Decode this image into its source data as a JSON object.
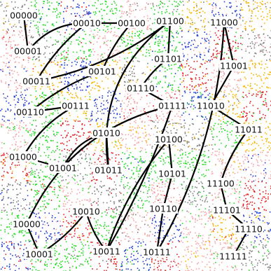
{
  "figure": {
    "background_point_colors": [
      "#e41a1c",
      "#1f3bd6",
      "#22dd22",
      "#f7b500",
      "#f4a6a6",
      "#808080"
    ]
  },
  "nodes": [
    {
      "id": "n00000",
      "label": "00000"
    },
    {
      "id": "n00001",
      "label": "00001"
    },
    {
      "id": "n00010",
      "label": "00010"
    },
    {
      "id": "n00011",
      "label": "00011"
    },
    {
      "id": "n00100",
      "label": "00100"
    },
    {
      "id": "n00101",
      "label": "00101"
    },
    {
      "id": "n00110",
      "label": "00110"
    },
    {
      "id": "n00111",
      "label": "00111"
    },
    {
      "id": "n01000",
      "label": "01000"
    },
    {
      "id": "n01001",
      "label": "01001"
    },
    {
      "id": "n01010",
      "label": "01010"
    },
    {
      "id": "n01011",
      "label": "01011"
    },
    {
      "id": "n01100",
      "label": "01100"
    },
    {
      "id": "n01101",
      "label": "01101"
    },
    {
      "id": "n01110",
      "label": "01110"
    },
    {
      "id": "n01111",
      "label": "01111"
    },
    {
      "id": "n10000",
      "label": "10000"
    },
    {
      "id": "n10001",
      "label": "10001"
    },
    {
      "id": "n10010",
      "label": "10010"
    },
    {
      "id": "n10011",
      "label": "10011"
    },
    {
      "id": "n10100",
      "label": "10100"
    },
    {
      "id": "n10101",
      "label": "10101"
    },
    {
      "id": "n10110",
      "label": "10110"
    },
    {
      "id": "n10111",
      "label": "10111"
    },
    {
      "id": "n11000",
      "label": "11000"
    },
    {
      "id": "n11001",
      "label": "11001"
    },
    {
      "id": "n11010",
      "label": "11010"
    },
    {
      "id": "n11011",
      "label": "11011"
    },
    {
      "id": "n11100",
      "label": "11100"
    },
    {
      "id": "n11101",
      "label": "11101"
    },
    {
      "id": "n11110",
      "label": "11110"
    },
    {
      "id": "n11111",
      "label": "11111"
    }
  ]
}
